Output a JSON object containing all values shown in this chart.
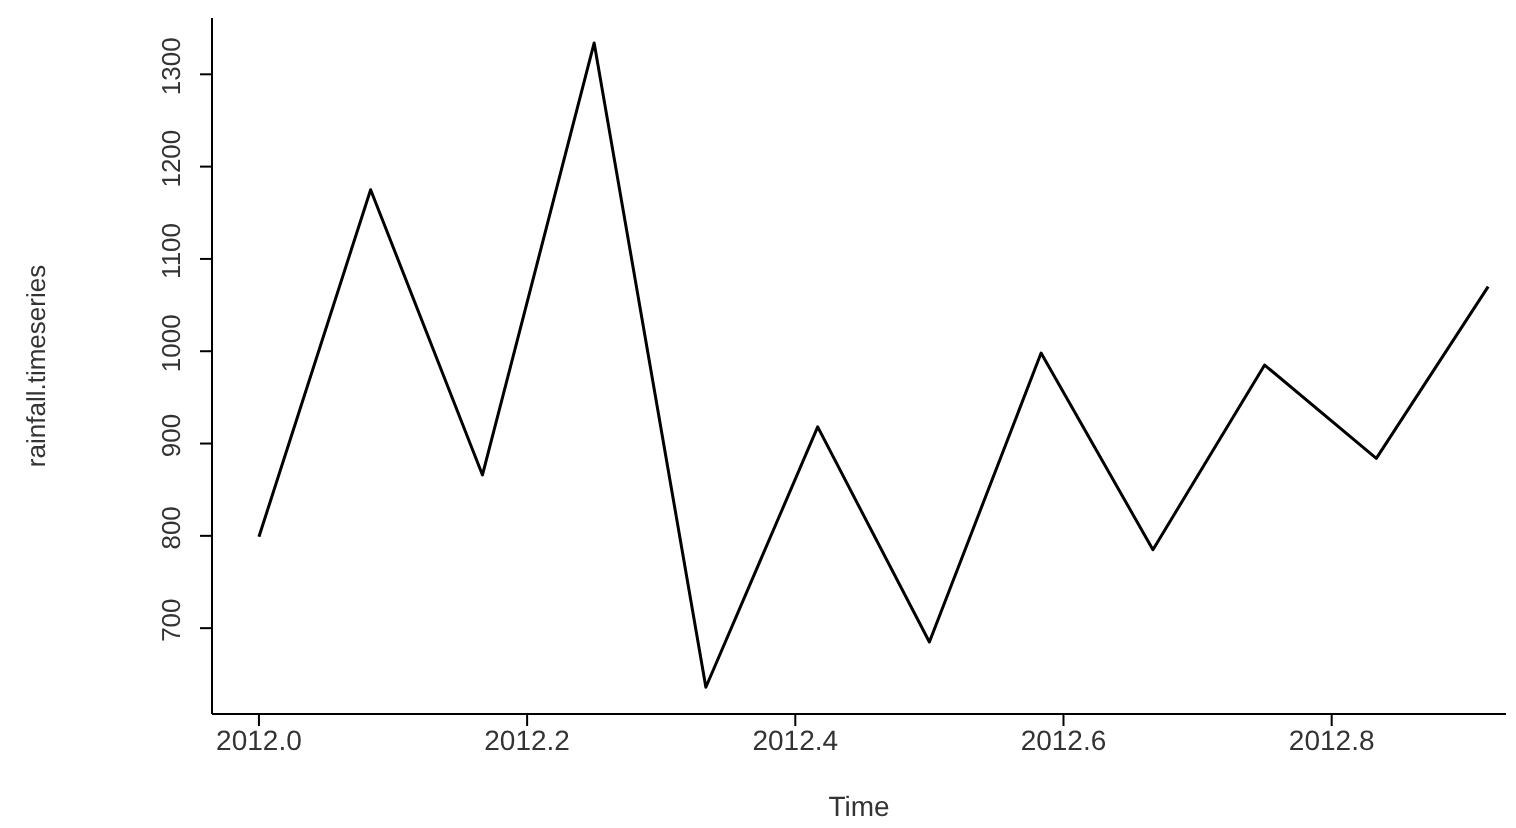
{
  "chart_data": {
    "type": "line",
    "xlabel": "Time",
    "ylabel": "rainfall.timeseries",
    "x": [
      2012.0,
      2012.0833,
      2012.1667,
      2012.25,
      2012.3333,
      2012.4167,
      2012.5,
      2012.5833,
      2012.6667,
      2012.75,
      2012.8333,
      2012.9167
    ],
    "series": [
      {
        "color": "#000000",
        "values": [
          799,
          1175,
          866,
          1334,
          636,
          918,
          685,
          998,
          785,
          985,
          884,
          1070
        ]
      }
    ],
    "xlim": [
      2011.965,
      2012.93
    ],
    "xticks": [
      {
        "value": 2012.0,
        "label": "2012.0"
      },
      {
        "value": 2012.2,
        "label": "2012.2"
      },
      {
        "value": 2012.4,
        "label": "2012.4"
      },
      {
        "value": 2012.6,
        "label": "2012.6"
      },
      {
        "value": 2012.8,
        "label": "2012.8"
      }
    ],
    "ylim": [
      607,
      1361
    ],
    "yticks": [
      700,
      800,
      900,
      1000,
      1100,
      1200,
      1300
    ],
    "grid": false,
    "legend": false,
    "marker": "none",
    "line_style": "solid"
  }
}
